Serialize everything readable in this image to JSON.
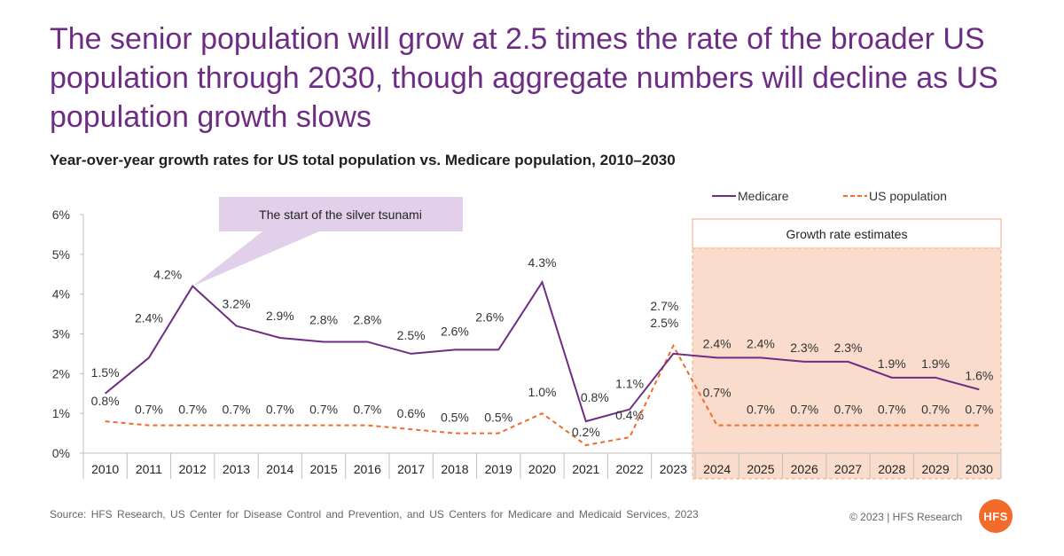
{
  "headline": "The senior population will grow at 2.5 times the rate of the broader US population through 2030, though aggregate numbers will decline as US population growth slows",
  "footer": {
    "source": "Source: HFS Research, US Center for Disease Control and Prevention, and US Centers for Medicare and Medicaid Services, 2023",
    "copyright": "© 2023 | HFS Research",
    "logo_text": "HFS"
  },
  "chart_data": {
    "type": "line",
    "title": "Year-over-year growth rates for US total population vs. Medicare population, 2010–2030",
    "categories": [
      "2010",
      "2011",
      "2012",
      "2013",
      "2014",
      "2015",
      "2016",
      "2017",
      "2018",
      "2019",
      "2020",
      "2021",
      "2022",
      "2023",
      "2024",
      "2025",
      "2026",
      "2027",
      "2028",
      "2029",
      "2030"
    ],
    "y_ticks": [
      "0%",
      "1%",
      "2%",
      "3%",
      "4%",
      "5%",
      "6%"
    ],
    "ylim": [
      0,
      6
    ],
    "series": [
      {
        "name": "Medicare",
        "color": "#6e2d84",
        "style": "solid",
        "values": [
          1.5,
          2.4,
          4.2,
          3.2,
          2.9,
          2.8,
          2.8,
          2.5,
          2.6,
          2.6,
          4.3,
          0.8,
          1.1,
          2.5,
          2.4,
          2.4,
          2.3,
          2.3,
          1.9,
          1.9,
          1.6
        ]
      },
      {
        "name": "US population",
        "color": "#f26b2b",
        "style": "dashed",
        "values": [
          0.8,
          0.7,
          0.7,
          0.7,
          0.7,
          0.7,
          0.7,
          0.6,
          0.5,
          0.5,
          1.0,
          0.2,
          0.4,
          2.7,
          0.7,
          0.7,
          0.7,
          0.7,
          0.7,
          0.7,
          0.7
        ]
      }
    ],
    "legend_position": "top-right",
    "annotations": {
      "callout": {
        "text": "The start of the silver tsunami",
        "points_to": "2012"
      },
      "estimate_region": {
        "label": "Growth rate estimates",
        "from": "2024",
        "to": "2030",
        "fill": "#f9dccb",
        "border": "#f4a77e"
      }
    },
    "callout_fill": "#e2cfe9",
    "grid": false
  }
}
